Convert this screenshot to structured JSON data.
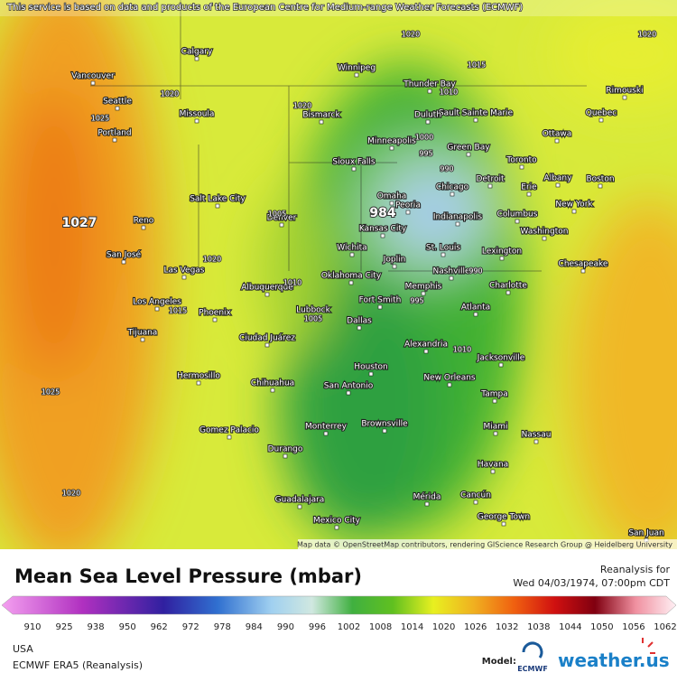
{
  "header": {
    "attribution": "This service is based on data and products of the European Centre for Medium-range Weather Forecasts (ECMWF)"
  },
  "map": {
    "cities": [
      "Vancouver",
      "Seattle",
      "Portland",
      "Calgary",
      "Winnipeg",
      "Thunder Bay",
      "Sault Sainte Marie",
      "Rimouski",
      "Quebec",
      "Ottawa",
      "Missoula",
      "Bismarck",
      "Duluth",
      "Minneapolis",
      "Green Bay",
      "Toronto",
      "Sioux Falls",
      "Albany",
      "Boston",
      "Detroit",
      "Erie",
      "Salt Lake City",
      "Omaha",
      "Chicago",
      "Peoria",
      "Indianapolis",
      "Columbus",
      "New York",
      "Reno",
      "Denver",
      "Kansas City",
      "Washington",
      "San José",
      "Wichita",
      "St. Louis",
      "Lexington",
      "Joplin",
      "Las Vegas",
      "Oklahoma City",
      "Nashville",
      "Chesapeake",
      "Fort Smith",
      "Memphis",
      "Charlotte",
      "Albuquerque",
      "Los Angeles",
      "Phoenix",
      "Lubbock",
      "Atlanta",
      "Tijuana",
      "Dallas",
      "Ciudad Juárez",
      "Alexandria",
      "Jacksonville",
      "Hermosillo",
      "Houston",
      "New Orleans",
      "Chihuahua",
      "San Antonio",
      "Tampa",
      "Brownsville",
      "Monterrey",
      "Miami",
      "Gomez Palacio",
      "Nassau",
      "Durango",
      "Havana",
      "Guadalajara",
      "Mérida",
      "Cancún",
      "George Town",
      "Mexico City",
      "San Juan"
    ],
    "isobar_labels": [
      1020,
      1020,
      1015,
      1020,
      1025,
      1027,
      1020,
      1010,
      1000,
      995,
      990,
      984,
      1010,
      1005,
      995,
      1015,
      1020,
      1010,
      1025,
      1020,
      990,
      1005
    ],
    "credit": "Map data © OpenStreetMap contributors, rendering GIScience Research Group @ Heidelberg University"
  },
  "footer": {
    "title": "Mean Sea Level Pressure (mbar)",
    "reanalysis_label": "Reanalysis for",
    "datetime": "Wed 04/03/1974, 07:00pm CDT",
    "colorbar_ticks": [
      910,
      925,
      938,
      950,
      962,
      972,
      978,
      984,
      990,
      996,
      1002,
      1008,
      1014,
      1020,
      1026,
      1032,
      1038,
      1044,
      1050,
      1056,
      1062
    ],
    "region": "USA",
    "model_name": "ECMWF ERA5 (Reanalysis)",
    "model_label": "Model:",
    "model_logo": "ECMWF",
    "brand": "weather.us"
  }
}
